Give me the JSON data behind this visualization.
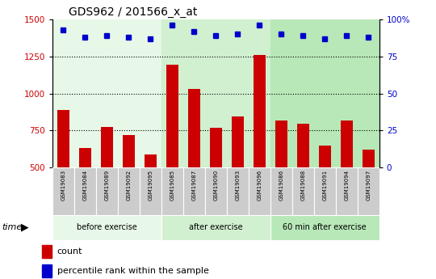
{
  "title": "GDS962 / 201566_x_at",
  "categories": [
    "GSM19083",
    "GSM19084",
    "GSM19089",
    "GSM19092",
    "GSM19095",
    "GSM19085",
    "GSM19087",
    "GSM19090",
    "GSM19093",
    "GSM19096",
    "GSM19086",
    "GSM19088",
    "GSM19091",
    "GSM19094",
    "GSM19097"
  ],
  "bar_values": [
    890,
    630,
    775,
    720,
    590,
    1195,
    1030,
    770,
    845,
    1260,
    815,
    795,
    650,
    815,
    620
  ],
  "percentile_values": [
    93,
    88,
    89,
    88,
    87,
    96,
    92,
    89,
    90,
    96,
    90,
    89,
    87,
    89,
    88
  ],
  "group_labels": [
    "before exercise",
    "after exercise",
    "60 min after exercise"
  ],
  "group_sizes": [
    5,
    5,
    5
  ],
  "bar_color": "#cc0000",
  "dot_color": "#0000cc",
  "ylim_left": [
    500,
    1500
  ],
  "ylim_right": [
    0,
    100
  ],
  "yticks_left": [
    500,
    750,
    1000,
    1250,
    1500
  ],
  "yticks_right": [
    0,
    25,
    50,
    75,
    100
  ],
  "grid_values": [
    750,
    1000,
    1250
  ],
  "bar_width": 0.55,
  "group_bg_colors": [
    "#e8f8e8",
    "#d0f0d0",
    "#b8e8b8"
  ],
  "tick_label_color": "#d0d0d0",
  "legend_square_size": 0.012
}
